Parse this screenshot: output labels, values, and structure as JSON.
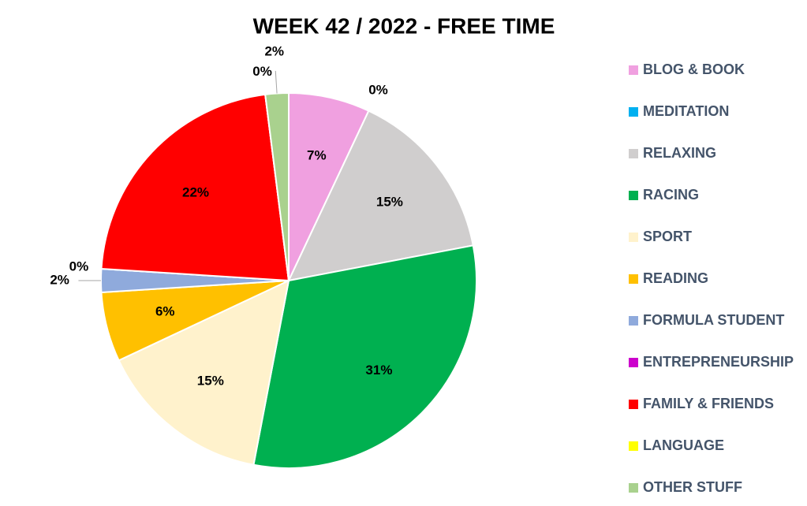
{
  "chart_data": {
    "type": "pie",
    "title": "WEEK 42 / 2022 - FREE TIME",
    "categories": [
      "BLOG & BOOK",
      "MEDITATION",
      "RELAXING",
      "RACING",
      "SPORT",
      "READING",
      "FORMULA STUDENT",
      "ENTREPRENEURSHIP",
      "FAMILY & FRIENDS",
      "LANGUAGE",
      "OTHER STUFF"
    ],
    "values": [
      7,
      0,
      15,
      31,
      15,
      6,
      2,
      0,
      22,
      0,
      2
    ],
    "value_labels": [
      "7%",
      "0%",
      "15%",
      "31%",
      "15%",
      "6%",
      "2%",
      "0%",
      "22%",
      "0%",
      "2%"
    ],
    "colors": [
      "#f0a0e0",
      "#00b0f0",
      "#d0cece",
      "#00b050",
      "#fff2cc",
      "#ffc000",
      "#8faadc",
      "#cc00cc",
      "#ff0000",
      "#ffff00",
      "#a9d18e"
    ],
    "legend": "right"
  }
}
